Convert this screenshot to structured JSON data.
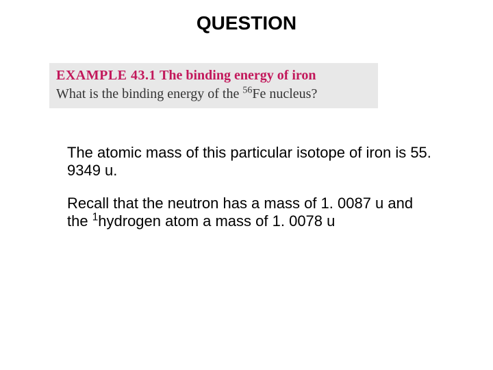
{
  "heading": "QUESTION",
  "example": {
    "label": "EXAMPLE 43.1",
    "title": "The binding energy of iron",
    "question_prefix": "What is the binding energy of the ",
    "question_super": "56",
    "question_suffix": "Fe nucleus?"
  },
  "paragraph1": "The atomic mass of this particular isotope of iron is 55. 9349 u.",
  "paragraph2_prefix": "Recall that the neutron has a mass of 1. 0087 u and the ",
  "paragraph2_super": "1",
  "paragraph2_suffix": "hydrogen atom a mass of 1. 0078 u",
  "colors": {
    "accent": "#c2185b",
    "box_bg": "#e8e8e8",
    "text": "#000000",
    "background": "#ffffff"
  },
  "typography": {
    "heading_size_pt": 21,
    "body_size_pt": 16,
    "example_size_pt": 15
  }
}
